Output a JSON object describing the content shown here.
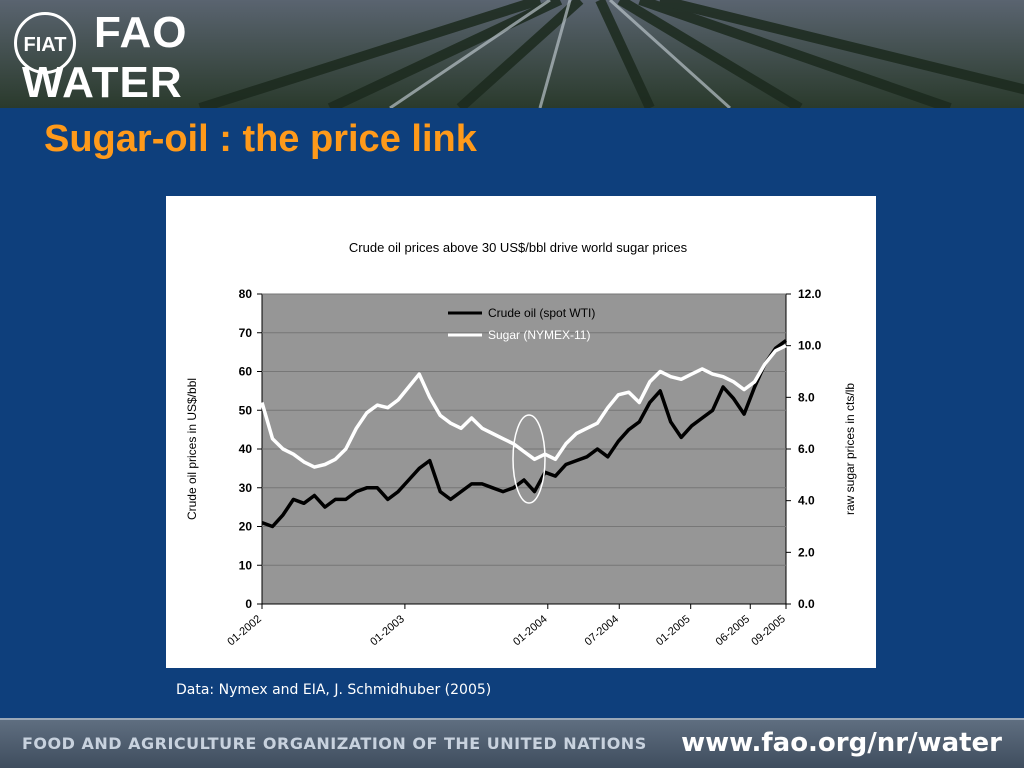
{
  "header": {
    "logo_line1": "FAO",
    "logo_line2": "WATER"
  },
  "slide": {
    "title": "Sugar-oil : the price link",
    "source": "Data: Nymex and EIA, J. Schmidhuber (2005)"
  },
  "footer": {
    "organization": "FOOD AND AGRICULTURE ORGANIZATION OF THE UNITED NATIONS",
    "url": "www.fao.org/nr/water"
  },
  "chart_data": {
    "type": "line",
    "title": "Crude oil prices above 30 US$/bbl drive world sugar prices",
    "ylabel_left": "Crude oil prices in US$/bbl",
    "ylabel_right": "raw sugar prices in cts/lb",
    "ylim_left": [
      0,
      80
    ],
    "ylim_right": [
      0.0,
      12.0
    ],
    "yticks_left": [
      "0",
      "10",
      "20",
      "30",
      "40",
      "50",
      "60",
      "70",
      "80"
    ],
    "yticks_right": [
      "0.0",
      "2.0",
      "4.0",
      "6.0",
      "8.0",
      "10.0",
      "12.0"
    ],
    "xticks": [
      {
        "label": "01-2002",
        "t": 0.0
      },
      {
        "label": "01-2003",
        "t": 0.2727
      },
      {
        "label": "01-2004",
        "t": 0.5454
      },
      {
        "label": "07-2004",
        "t": 0.6818
      },
      {
        "label": "01-2005",
        "t": 0.8181
      },
      {
        "label": "06-2005",
        "t": 0.9318
      },
      {
        "label": "09-2005",
        "t": 1.0
      }
    ],
    "legend_position": "top-center",
    "plot_background": "#969696",
    "series": [
      {
        "name": "Crude oil (spot WTI)",
        "axis": "left",
        "color": "#000000",
        "t": [
          0.0,
          0.02,
          0.04,
          0.06,
          0.08,
          0.1,
          0.12,
          0.14,
          0.16,
          0.18,
          0.2,
          0.22,
          0.24,
          0.26,
          0.28,
          0.3,
          0.32,
          0.34,
          0.36,
          0.38,
          0.4,
          0.42,
          0.44,
          0.46,
          0.48,
          0.5,
          0.52,
          0.54,
          0.56,
          0.58,
          0.6,
          0.62,
          0.64,
          0.66,
          0.68,
          0.7,
          0.72,
          0.74,
          0.76,
          0.78,
          0.8,
          0.82,
          0.84,
          0.86,
          0.88,
          0.9,
          0.92,
          0.94,
          0.96,
          0.98,
          1.0
        ],
        "values": [
          21,
          20,
          23,
          27,
          26,
          28,
          25,
          27,
          27,
          29,
          30,
          30,
          27,
          29,
          32,
          35,
          37,
          29,
          27,
          29,
          31,
          31,
          30,
          29,
          30,
          32,
          29,
          34,
          33,
          36,
          37,
          38,
          40,
          38,
          42,
          45,
          47,
          52,
          55,
          47,
          43,
          46,
          48,
          50,
          56,
          53,
          49,
          56,
          62,
          66,
          68
        ]
      },
      {
        "name": "Sugar (NYMEX-11)",
        "axis": "right",
        "color": "#ffffff",
        "t": [
          0.0,
          0.02,
          0.04,
          0.06,
          0.08,
          0.1,
          0.12,
          0.14,
          0.16,
          0.18,
          0.2,
          0.22,
          0.24,
          0.26,
          0.28,
          0.3,
          0.32,
          0.34,
          0.36,
          0.38,
          0.4,
          0.42,
          0.44,
          0.46,
          0.48,
          0.5,
          0.52,
          0.54,
          0.56,
          0.58,
          0.6,
          0.62,
          0.64,
          0.66,
          0.68,
          0.7,
          0.72,
          0.74,
          0.76,
          0.78,
          0.8,
          0.82,
          0.84,
          0.86,
          0.88,
          0.9,
          0.92,
          0.94,
          0.96,
          0.98,
          1.0
        ],
        "values": [
          7.8,
          6.4,
          6.0,
          5.8,
          5.5,
          5.3,
          5.4,
          5.6,
          6.0,
          6.8,
          7.4,
          7.7,
          7.6,
          7.9,
          8.4,
          8.9,
          8.0,
          7.3,
          7.0,
          6.8,
          7.2,
          6.8,
          6.6,
          6.4,
          6.2,
          5.9,
          5.6,
          5.8,
          5.6,
          6.2,
          6.6,
          6.8,
          7.0,
          7.6,
          8.1,
          8.2,
          7.8,
          8.6,
          9.0,
          8.8,
          8.7,
          8.9,
          9.1,
          8.9,
          8.8,
          8.6,
          8.3,
          8.6,
          9.3,
          9.8,
          10.0
        ]
      }
    ]
  }
}
